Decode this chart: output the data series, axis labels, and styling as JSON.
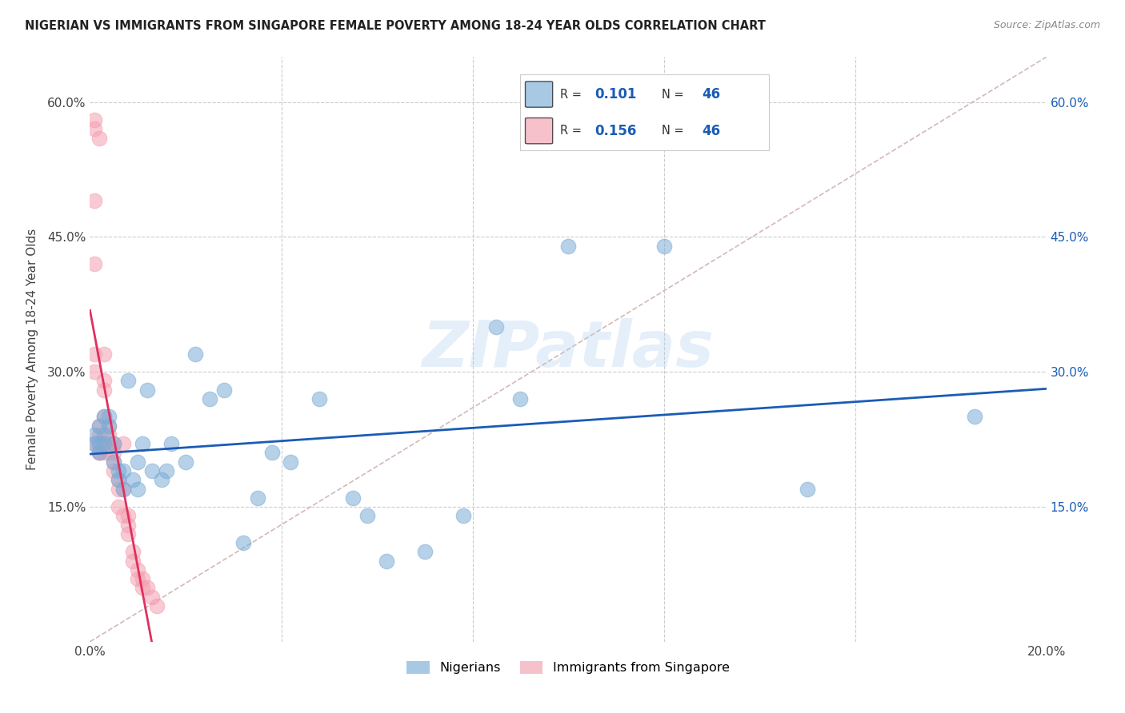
{
  "title": "NIGERIAN VS IMMIGRANTS FROM SINGAPORE FEMALE POVERTY AMONG 18-24 YEAR OLDS CORRELATION CHART",
  "source": "Source: ZipAtlas.com",
  "ylabel": "Female Poverty Among 18-24 Year Olds",
  "xlim": [
    0.0,
    0.2
  ],
  "ylim": [
    0.0,
    0.65
  ],
  "background_color": "#ffffff",
  "grid_color": "#cccccc",
  "watermark": "ZIPatlas",
  "legend_R1": "0.101",
  "legend_N1": "46",
  "legend_R2": "0.156",
  "legend_N2": "46",
  "blue_color": "#7aacd6",
  "pink_color": "#f4a0b0",
  "trendline_blue": "#1a5cb5",
  "trendline_pink": "#e03060",
  "diagonal_color": "#d4b8b8",
  "nigerians_x": [
    0.001,
    0.001,
    0.002,
    0.002,
    0.002,
    0.003,
    0.003,
    0.003,
    0.004,
    0.004,
    0.005,
    0.005,
    0.006,
    0.006,
    0.007,
    0.007,
    0.008,
    0.009,
    0.01,
    0.01,
    0.011,
    0.012,
    0.013,
    0.015,
    0.016,
    0.017,
    0.02,
    0.022,
    0.025,
    0.028,
    0.032,
    0.035,
    0.038,
    0.042,
    0.048,
    0.055,
    0.058,
    0.062,
    0.07,
    0.078,
    0.085,
    0.09,
    0.1,
    0.12,
    0.15,
    0.185
  ],
  "nigerians_y": [
    0.22,
    0.23,
    0.24,
    0.22,
    0.21,
    0.25,
    0.23,
    0.22,
    0.25,
    0.24,
    0.2,
    0.22,
    0.18,
    0.19,
    0.17,
    0.19,
    0.29,
    0.18,
    0.2,
    0.17,
    0.22,
    0.28,
    0.19,
    0.18,
    0.19,
    0.22,
    0.2,
    0.32,
    0.27,
    0.28,
    0.11,
    0.16,
    0.21,
    0.2,
    0.27,
    0.16,
    0.14,
    0.09,
    0.1,
    0.14,
    0.35,
    0.27,
    0.44,
    0.44,
    0.17,
    0.25
  ],
  "singapore_x": [
    0.001,
    0.001,
    0.001,
    0.001,
    0.001,
    0.001,
    0.001,
    0.002,
    0.002,
    0.002,
    0.002,
    0.002,
    0.002,
    0.003,
    0.003,
    0.003,
    0.003,
    0.003,
    0.003,
    0.004,
    0.004,
    0.004,
    0.004,
    0.004,
    0.005,
    0.005,
    0.005,
    0.005,
    0.006,
    0.006,
    0.006,
    0.007,
    0.007,
    0.007,
    0.008,
    0.008,
    0.008,
    0.009,
    0.009,
    0.01,
    0.01,
    0.011,
    0.011,
    0.012,
    0.013,
    0.014
  ],
  "singapore_y": [
    0.58,
    0.57,
    0.49,
    0.42,
    0.32,
    0.3,
    0.22,
    0.56,
    0.24,
    0.23,
    0.22,
    0.21,
    0.21,
    0.32,
    0.29,
    0.28,
    0.25,
    0.22,
    0.21,
    0.24,
    0.23,
    0.22,
    0.22,
    0.21,
    0.22,
    0.21,
    0.2,
    0.19,
    0.18,
    0.17,
    0.15,
    0.22,
    0.17,
    0.14,
    0.14,
    0.13,
    0.12,
    0.1,
    0.09,
    0.08,
    0.07,
    0.07,
    0.06,
    0.06,
    0.05,
    0.04
  ],
  "nigerians_trend_x": [
    0.001,
    0.185
  ],
  "singapore_trend_x_start": 0.001,
  "singapore_trend_x_end": 0.014
}
